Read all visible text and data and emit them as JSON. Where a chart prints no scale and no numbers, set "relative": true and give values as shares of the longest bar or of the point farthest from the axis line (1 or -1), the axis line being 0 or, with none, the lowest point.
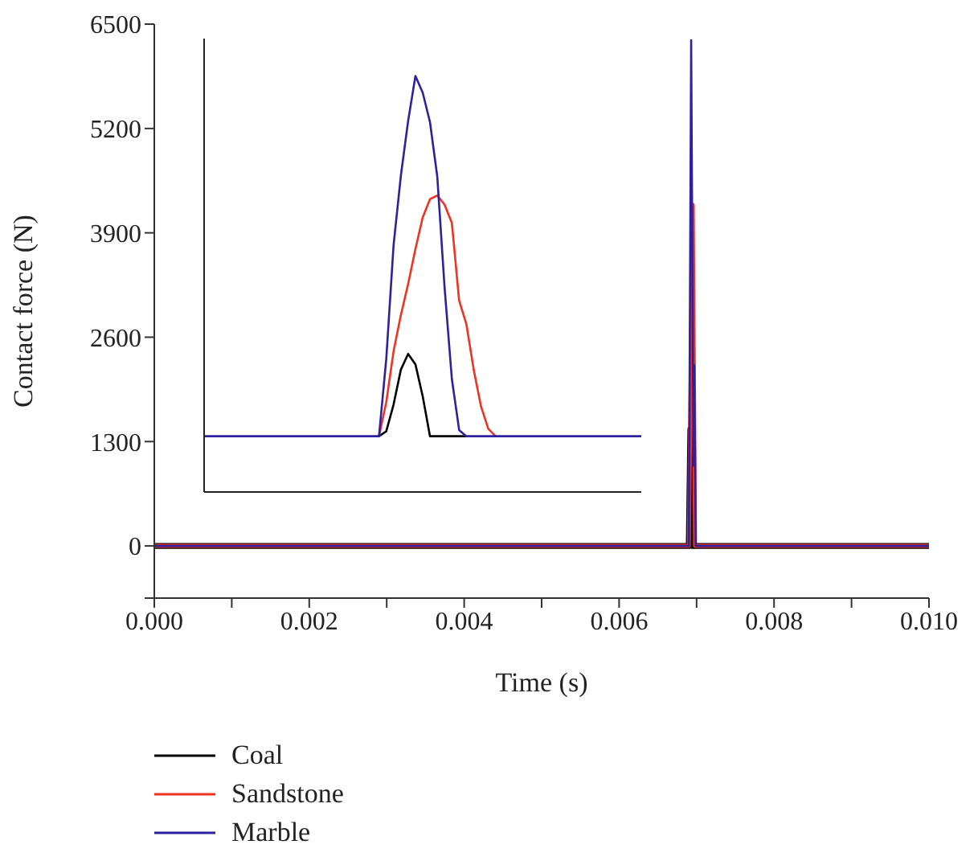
{
  "chart_data": [
    {
      "type": "line",
      "xlabel": "Time (s)",
      "ylabel": "Contact force (N)",
      "xlim": [
        0,
        0.01
      ],
      "ylim": [
        -650,
        6500
      ],
      "xticks": [
        {
          "value": 0,
          "label": "0.000"
        },
        {
          "value": 0.001,
          "label": null
        },
        {
          "value": 0.002,
          "label": "0.002"
        },
        {
          "value": 0.003,
          "label": null
        },
        {
          "value": 0.004,
          "label": "0.004"
        },
        {
          "value": 0.005,
          "label": null
        },
        {
          "value": 0.006,
          "label": "0.006"
        },
        {
          "value": 0.007,
          "label": null
        },
        {
          "value": 0.008,
          "label": "0.008"
        },
        {
          "value": 0.009,
          "label": null
        },
        {
          "value": 0.01,
          "label": "0.010"
        }
      ],
      "yticks": [
        {
          "value": -650,
          "label": null
        },
        0,
        1300,
        2600,
        3900,
        5200,
        6500
      ],
      "grid": false,
      "legend": "bottom",
      "marker": "none",
      "line_style": "solid",
      "series": [
        {
          "name": "Coal",
          "color": "#000000",
          "x": [
            0,
            0.0069,
            0.00692,
            0.00695,
            0.01
          ],
          "values": [
            0,
            0,
            1450,
            0,
            0
          ]
        },
        {
          "name": "Sandstone",
          "color": "#ee3322",
          "x": [
            0,
            0.0069,
            0.00695,
            0.00698,
            0.01
          ],
          "values": [
            0,
            0,
            4250,
            0,
            0
          ]
        },
        {
          "name": "Marble",
          "color": "#2e21a0",
          "x": [
            0,
            0.0069,
            0.00693,
            0.00696,
            0.00697,
            0.00699,
            0.01
          ],
          "values": [
            0,
            0,
            6300,
            1000,
            2250,
            0,
            0
          ]
        }
      ]
    },
    {
      "type": "line",
      "relative": true,
      "legend": false,
      "marker": "none",
      "line_style": "solid",
      "categories": [
        null,
        null,
        null,
        null,
        null,
        null,
        null,
        null,
        null,
        null,
        null,
        null,
        null,
        null,
        null,
        null,
        null,
        null,
        null,
        null,
        null,
        null,
        null,
        null,
        null,
        null,
        null,
        null,
        null,
        null,
        null,
        null,
        null,
        null,
        null,
        null,
        null,
        null,
        null,
        null,
        null,
        null,
        null,
        null,
        null,
        null,
        null,
        null,
        null,
        null,
        null,
        null,
        null,
        null,
        null,
        null,
        null,
        null,
        null,
        null,
        null
      ],
      "series": [
        {
          "color": "#000000",
          "values": [
            null,
            null,
            null,
            null,
            null,
            null,
            null,
            null,
            null,
            null,
            null,
            null,
            null,
            null,
            null,
            null,
            null,
            null,
            null,
            null,
            null,
            null,
            null,
            null,
            0.134,
            0.146,
            0.21,
            0.294,
            0.332,
            0.307,
            0.23,
            0.134,
            0.134,
            0.134,
            0.134,
            0.134,
            0.134,
            null,
            null,
            null,
            null,
            null,
            null,
            null,
            null,
            null,
            null,
            null,
            null,
            null,
            null,
            null,
            null,
            null,
            null,
            null,
            null,
            null,
            null,
            null,
            null
          ]
        },
        {
          "color": "#ee3322",
          "values": [
            null,
            null,
            null,
            null,
            null,
            null,
            null,
            null,
            null,
            null,
            null,
            null,
            null,
            null,
            null,
            null,
            null,
            null,
            null,
            null,
            null,
            null,
            null,
            null,
            0.134,
            0.216,
            0.338,
            0.425,
            0.5,
            0.584,
            0.66,
            0.704,
            0.713,
            0.691,
            0.647,
            0.46,
            0.403,
            0.294,
            0.206,
            0.152,
            0.134,
            null,
            null,
            null,
            null,
            null,
            null,
            null,
            null,
            null,
            null,
            null,
            null,
            null,
            null,
            null,
            null,
            null,
            null,
            null,
            null
          ]
        },
        {
          "color": "#2e21a0",
          "values": [
            0.134,
            0.134,
            0.134,
            0.134,
            0.134,
            0.134,
            0.134,
            0.134,
            0.134,
            0.134,
            0.134,
            0.134,
            0.134,
            0.134,
            0.134,
            0.134,
            0.134,
            0.134,
            0.134,
            0.134,
            0.134,
            0.134,
            0.134,
            0.134,
            0.134,
            0.32,
            0.593,
            0.76,
            0.892,
            1,
            0.96,
            0.889,
            0.758,
            0.492,
            0.272,
            0.149,
            0.134,
            0.134,
            0.134,
            0.134,
            0.134,
            0.134,
            0.134,
            0.134,
            0.134,
            0.134,
            0.134,
            0.134,
            0.134,
            0.134,
            0.134,
            0.134,
            0.134,
            0.134,
            0.134,
            0.134,
            0.134,
            0.134,
            0.134,
            0.134,
            0.134
          ]
        }
      ]
    }
  ]
}
